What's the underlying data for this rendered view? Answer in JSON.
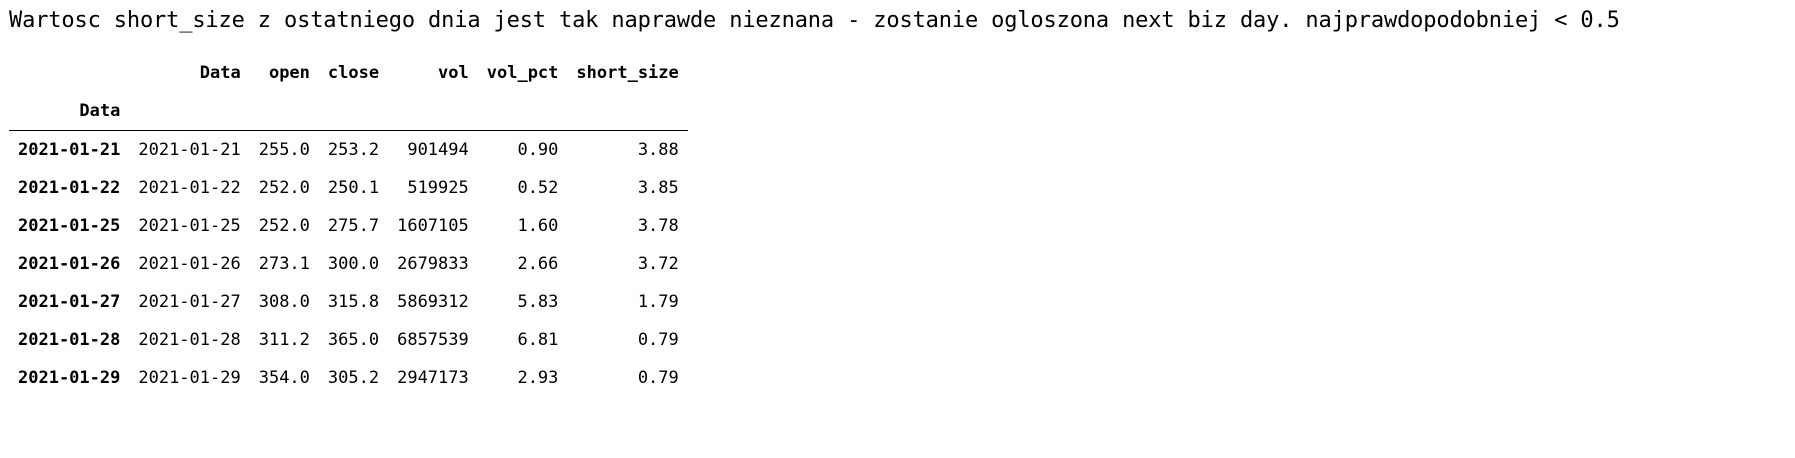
{
  "note": "Wartosc short_size z ostatniego dnia jest tak naprawde nieznana - zostanie ogloszona next biz day. najprawdopodobniej < 0.5",
  "table": {
    "index_name": "Data",
    "columns": [
      "Data",
      "open",
      "close",
      "vol",
      "vol_pct",
      "short_size"
    ],
    "rows": [
      {
        "index": "2021-01-21",
        "values": [
          "2021-01-21",
          "255.0",
          "253.2",
          "901494",
          "0.90",
          "3.88"
        ]
      },
      {
        "index": "2021-01-22",
        "values": [
          "2021-01-22",
          "252.0",
          "250.1",
          "519925",
          "0.52",
          "3.85"
        ]
      },
      {
        "index": "2021-01-25",
        "values": [
          "2021-01-25",
          "252.0",
          "275.7",
          "1607105",
          "1.60",
          "3.78"
        ]
      },
      {
        "index": "2021-01-26",
        "values": [
          "2021-01-26",
          "273.1",
          "300.0",
          "2679833",
          "2.66",
          "3.72"
        ]
      },
      {
        "index": "2021-01-27",
        "values": [
          "2021-01-27",
          "308.0",
          "315.8",
          "5869312",
          "5.83",
          "1.79"
        ]
      },
      {
        "index": "2021-01-28",
        "values": [
          "2021-01-28",
          "311.2",
          "365.0",
          "6857539",
          "6.81",
          "0.79"
        ]
      },
      {
        "index": "2021-01-29",
        "values": [
          "2021-01-29",
          "354.0",
          "305.2",
          "2947173",
          "2.93",
          "0.79"
        ]
      }
    ]
  }
}
